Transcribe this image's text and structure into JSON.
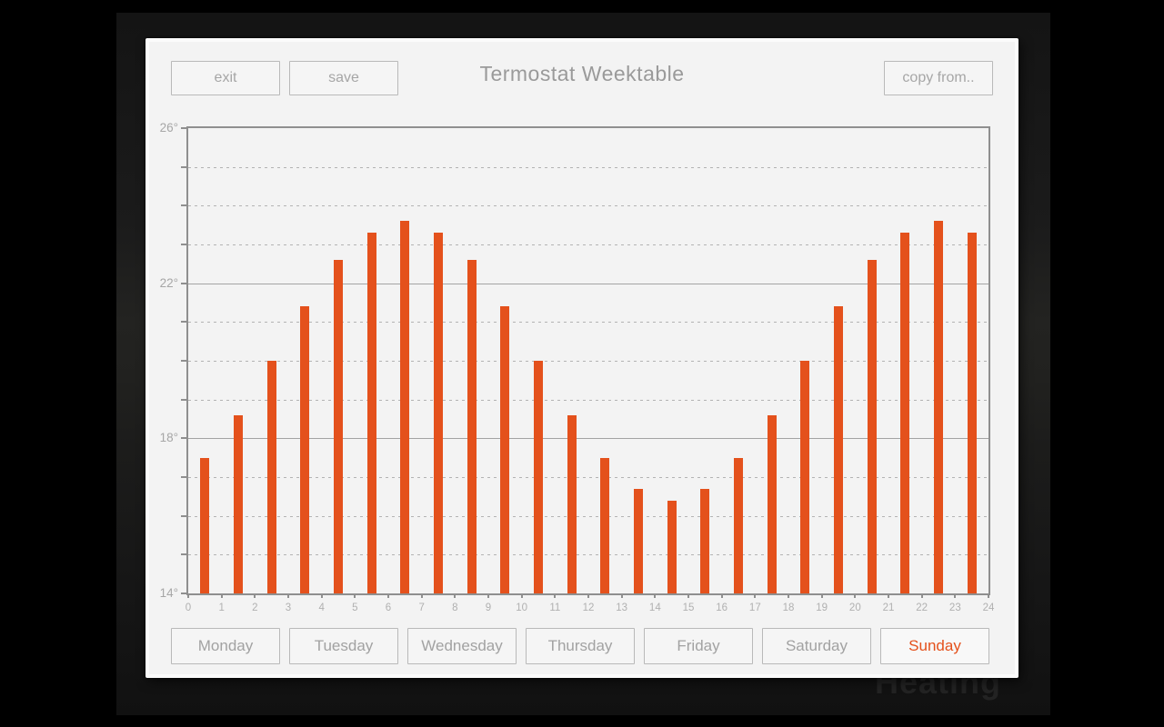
{
  "window": {
    "title": "Termostat Weektable",
    "background_watermark": "Heating"
  },
  "toolbar": {
    "exit": "exit",
    "save": "save",
    "copy_from": "copy from.."
  },
  "day_tabs": {
    "days": [
      "Monday",
      "Tuesday",
      "Wednesday",
      "Thursday",
      "Friday",
      "Saturday",
      "Sunday"
    ],
    "active_day": "Sunday"
  },
  "colors": {
    "accent_orange": "#e4511c",
    "panel_bg": "#f3f3f3",
    "axis_line": "#8f8f8f",
    "grid_solid": "#a3a3a3",
    "grid_dashed": "#b3b3b3",
    "label_gray": "#a6a6a6",
    "backdrop_dark": "#1c1c1c"
  },
  "chart_data": {
    "type": "bar",
    "title": "",
    "xlabel": "",
    "ylabel": "",
    "x": [
      0,
      1,
      2,
      3,
      4,
      5,
      6,
      7,
      8,
      9,
      10,
      11,
      12,
      13,
      14,
      15,
      16,
      17,
      18,
      19,
      20,
      21,
      22,
      23
    ],
    "values": [
      17.5,
      18.6,
      20.0,
      21.4,
      22.6,
      23.3,
      23.6,
      23.3,
      22.6,
      21.4,
      20.0,
      18.6,
      17.5,
      16.7,
      16.4,
      16.7,
      17.5,
      18.6,
      20.0,
      21.4,
      22.6,
      23.3,
      23.6,
      23.3
    ],
    "unit": "°C",
    "ylim": [
      14,
      26
    ],
    "xlim": [
      0,
      24
    ],
    "y_tick_labels": [
      {
        "value": 26,
        "label": "26°"
      },
      {
        "value": 22,
        "label": "22°"
      },
      {
        "value": 18,
        "label": "18°"
      },
      {
        "value": 14,
        "label": "14°"
      }
    ],
    "x_tick_labels": [
      "0",
      "1",
      "2",
      "3",
      "4",
      "5",
      "6",
      "7",
      "8",
      "9",
      "10",
      "11",
      "12",
      "13",
      "14",
      "15",
      "16",
      "17",
      "18",
      "19",
      "20",
      "21",
      "22",
      "23",
      "24"
    ],
    "solid_gridlines": [
      22,
      18
    ],
    "dashed_gridlines": [
      15,
      16,
      17,
      19,
      20,
      21,
      23,
      24,
      25
    ],
    "bar_color": "#e4511c",
    "legend": false,
    "grid": true
  }
}
